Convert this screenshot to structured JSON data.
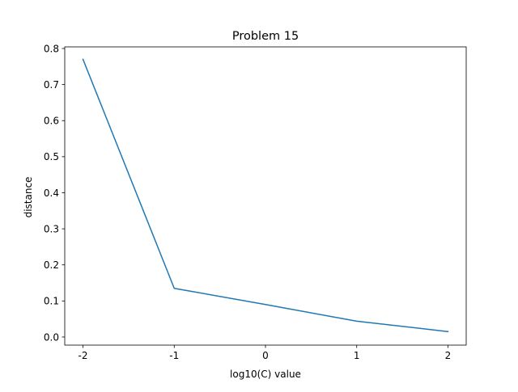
{
  "chart_data": {
    "type": "line",
    "title": "Problem 15",
    "xlabel": "log10(C) value",
    "ylabel": "distance",
    "xlim": [
      -2.2,
      2.2
    ],
    "ylim": [
      -0.0225,
      0.8045
    ],
    "x_ticks": [
      -2,
      -1,
      0,
      1,
      2
    ],
    "x_tick_labels": [
      "-2",
      "-1",
      "0",
      "1",
      "2"
    ],
    "y_ticks": [
      0.0,
      0.1,
      0.2,
      0.3,
      0.4,
      0.5,
      0.6,
      0.7,
      0.8
    ],
    "y_tick_labels": [
      "0.0",
      "0.1",
      "0.2",
      "0.3",
      "0.4",
      "0.5",
      "0.6",
      "0.7",
      "0.8"
    ],
    "grid": false,
    "series": [
      {
        "color": "#1f77b4",
        "x": [
          -2,
          -1,
          0,
          1,
          2
        ],
        "y": [
          0.77,
          0.135,
          0.09,
          0.044,
          0.015
        ]
      }
    ]
  }
}
